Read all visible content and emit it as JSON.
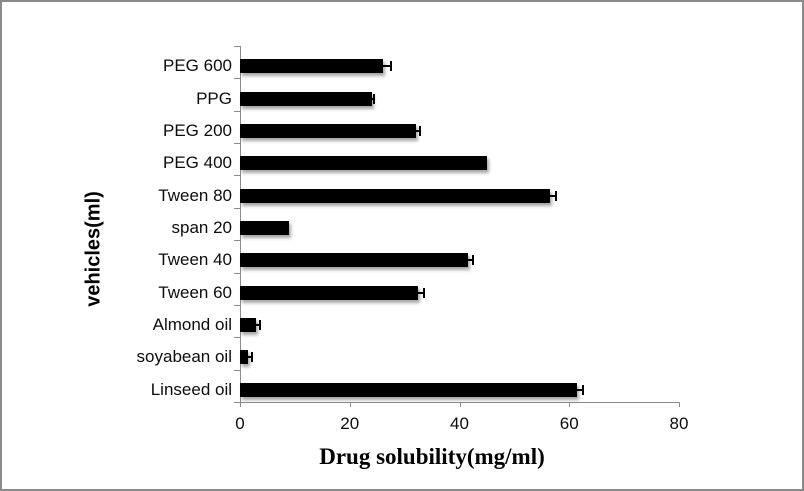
{
  "frame": {
    "border_color": "#8a8a8a",
    "background_color": "#ffffff"
  },
  "chart_data": {
    "type": "bar",
    "orientation": "horizontal",
    "title": "",
    "xlabel": "Drug solubility(mg/ml)",
    "ylabel": "vehicles(ml)",
    "categories": [
      "PEG 600",
      "PPG",
      "PEG 200",
      "PEG 400",
      "Tween 80",
      "span 20",
      "Tween 40",
      "Tween 60",
      "Almond oil",
      "soyabean oil",
      "Linseed oil"
    ],
    "values": [
      26,
      24,
      32,
      45,
      56.5,
      9,
      41.5,
      32.5,
      3,
      1.5,
      61.5
    ],
    "errors": [
      1.5,
      0.5,
      0.8,
      0,
      1,
      0,
      1,
      1,
      0.7,
      0.7,
      1
    ],
    "xlim": [
      0,
      80
    ],
    "xticks": [
      0,
      20,
      40,
      60,
      80
    ],
    "bar_color": "#000000",
    "axis_color": "#8c8c8c",
    "grid": false,
    "legend_position": "none"
  }
}
